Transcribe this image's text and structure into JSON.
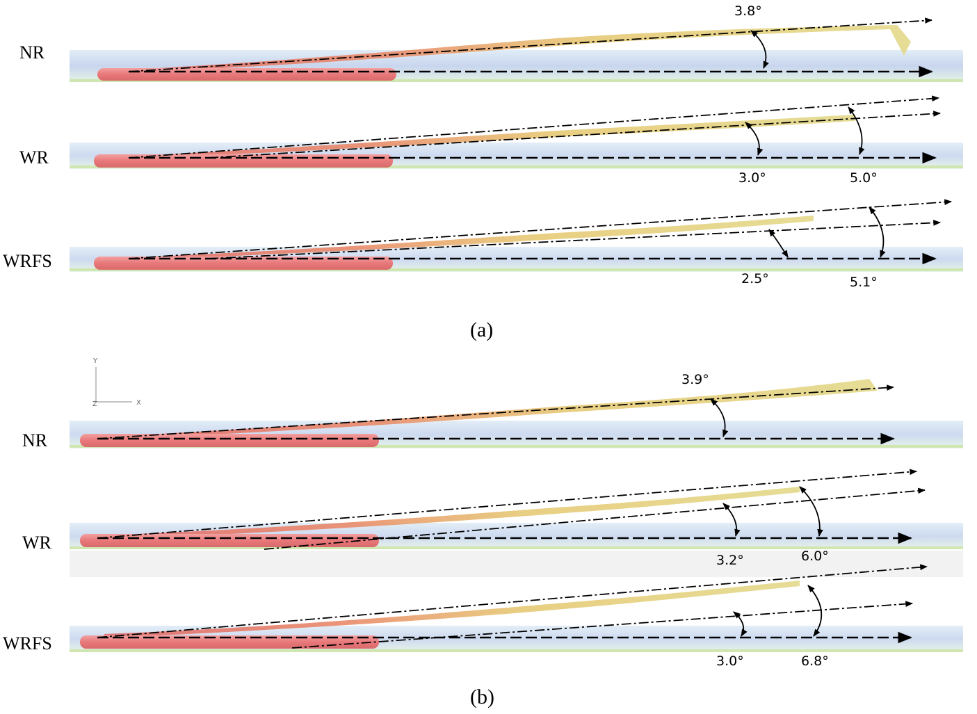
{
  "panels": [
    {
      "caption": "(a)",
      "rows": [
        {
          "label": "NR",
          "angles": [
            "3.8°"
          ]
        },
        {
          "label": "WR",
          "angles": [
            "3.0°",
            "5.0°"
          ]
        },
        {
          "label": "WRFS",
          "angles": [
            "2.5°",
            "5.1°"
          ]
        }
      ]
    },
    {
      "caption": "(b)",
      "axes": {
        "y": "Y",
        "x": "X",
        "z": "Z"
      },
      "rows": [
        {
          "label": "NR",
          "angles": [
            "3.9°"
          ]
        },
        {
          "label": "WR",
          "angles": [
            "3.2°",
            "6.0°"
          ]
        },
        {
          "label": "WRFS",
          "angles": [
            "3.0°",
            "6.8°"
          ]
        }
      ]
    }
  ],
  "colors": {
    "body": "#e8787a",
    "streak_red": "#e26a6a",
    "streak_yellow": "#e6d774",
    "boundary_blue": "#8fa8d8",
    "boundary_cyan": "#9fd9d6"
  }
}
